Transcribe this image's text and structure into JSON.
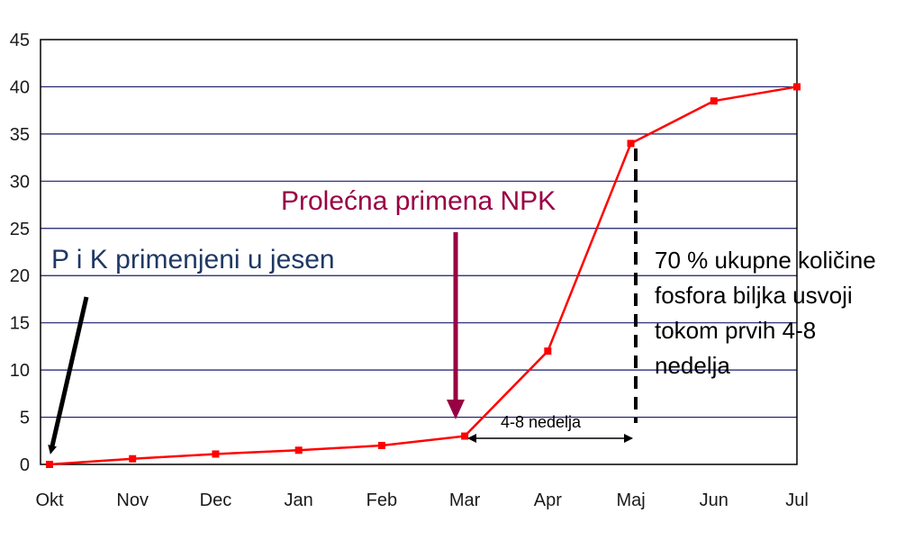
{
  "chart_data": {
    "type": "line",
    "title": "",
    "xlabel": "",
    "ylabel": "",
    "categories": [
      "Okt",
      "Nov",
      "Dec",
      "Jan",
      "Feb",
      "Mar",
      "Apr",
      "Maj",
      "Jun",
      "Jul"
    ],
    "series": [
      {
        "values": [
          0,
          0.6,
          1.1,
          1.5,
          2.0,
          3.0,
          12.0,
          34.0,
          38.5,
          40.0
        ],
        "color": "#ff0000"
      }
    ],
    "ylim": [
      0,
      45
    ],
    "yticks": [
      0,
      5,
      10,
      15,
      20,
      25,
      30,
      35,
      40,
      45
    ],
    "grid": true,
    "annotations": {
      "autumn_label": "P i K primenjeni  u jesen",
      "spring_label": "Prolećna primena NPK",
      "spring_color": "#990044",
      "weeks_label": "4-8 nedelja",
      "note_lines": [
        "70 % ukupne količine",
        "fosfora biljka usvoji",
        "tokom prvih 4-8",
        "nedelja"
      ]
    }
  }
}
